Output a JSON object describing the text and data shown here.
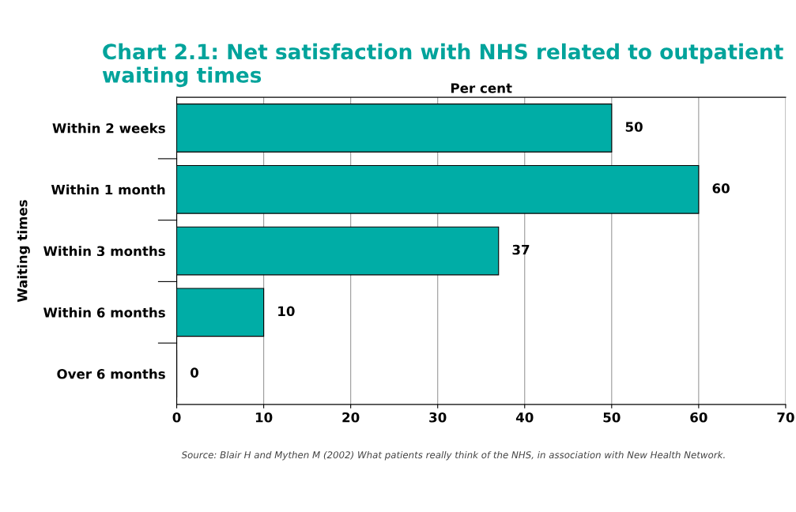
{
  "chart_data": {
    "type": "bar",
    "orientation": "horizontal",
    "title": "Chart 2.1: Net satisfaction with NHS related to outpatient waiting times",
    "xlabel": "Per cent",
    "ylabel": "Waiting times",
    "categories": [
      "Within 2 weeks",
      "Within 1 month",
      "Within 3 months",
      "Within 6 months",
      "Over 6 months"
    ],
    "values": [
      50,
      60,
      37,
      10,
      0
    ],
    "color": "#00ada6",
    "data_labels": true,
    "xlim": [
      0,
      70
    ],
    "xticks": [
      0,
      10,
      20,
      30,
      40,
      50,
      60,
      70
    ],
    "grid": "x",
    "annotations": [
      "Source: Blair H and Mythen M (2002) What patients really think of the NHS, in association with New Health Network."
    ]
  }
}
